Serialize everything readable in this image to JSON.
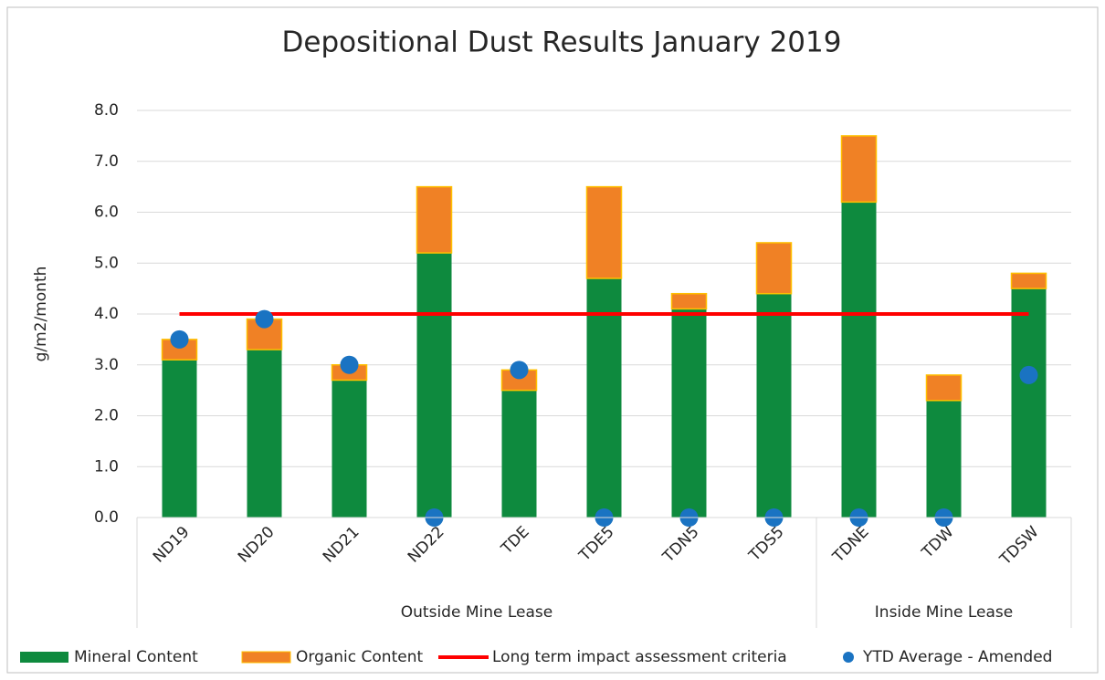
{
  "chart_data": {
    "type": "bar",
    "title": "Depositional Dust Results January 2019",
    "y_label": "g/m2/month",
    "categories": [
      "ND19",
      "ND20",
      "ND21",
      "ND22",
      "TDE",
      "TDE5",
      "TDN5",
      "TDS5",
      "TDNE",
      "TDW",
      "TDSW"
    ],
    "groups": [
      {
        "label": "Outside Mine Lease",
        "size": 8
      },
      {
        "label": "Inside Mine Lease",
        "size": 3
      }
    ],
    "series": [
      {
        "name": "Mineral Content",
        "type": "bar",
        "color": "#0e8a3e",
        "values": [
          3.1,
          3.3,
          2.7,
          5.2,
          2.5,
          4.7,
          4.1,
          4.4,
          6.2,
          2.3,
          4.5
        ]
      },
      {
        "name": "Organic Content",
        "type": "bar",
        "color": "#f08125",
        "values": [
          0.4,
          0.6,
          0.3,
          1.3,
          0.4,
          1.8,
          0.3,
          1.0,
          1.3,
          0.5,
          0.3
        ]
      },
      {
        "name": "Long term impact assessment criteria",
        "type": "line",
        "color": "#ff0000",
        "values": [
          4.0,
          4.0,
          4.0,
          4.0,
          4.0,
          4.0,
          4.0,
          4.0,
          4.0,
          4.0,
          4.0
        ]
      },
      {
        "name": "YTD Average - Amended",
        "type": "scatter",
        "color": "#1a73c2",
        "values": [
          3.5,
          3.9,
          3.0,
          0,
          2.9,
          0,
          0,
          0,
          0,
          0,
          2.8
        ]
      }
    ],
    "stacked": true,
    "ylim": [
      0,
      8
    ],
    "yticks": [
      {
        "value": 0,
        "label": "0.0"
      },
      {
        "value": 1,
        "label": "1.0"
      },
      {
        "value": 2,
        "label": "2.0"
      },
      {
        "value": 3,
        "label": "3.0"
      },
      {
        "value": 4,
        "label": "4.0"
      },
      {
        "value": 5,
        "label": "5.0"
      },
      {
        "value": 6,
        "label": "6.0"
      },
      {
        "value": 7,
        "label": "7.0"
      },
      {
        "value": 8,
        "label": "8.0"
      }
    ],
    "grid": true,
    "legend": "bottom"
  }
}
